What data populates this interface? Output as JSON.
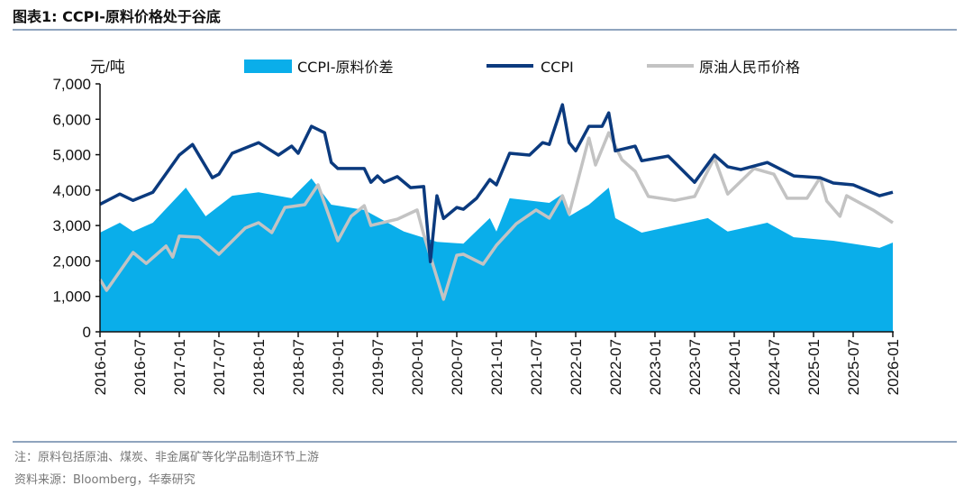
{
  "header": {
    "title": "图表1:  CCPI-原料价格处于谷底"
  },
  "footer": {
    "note": "注：原料包括原油、煤炭、非金属矿等化学品制造环节上游",
    "source": "资料来源：Bloomberg，华泰研究"
  },
  "chart_data": {
    "type": "line",
    "title": "CCPI-原料价格处于谷底",
    "ylabel": "元/吨",
    "ylim": [
      0,
      7000
    ],
    "yticks": [
      "0",
      "1,000",
      "2,000",
      "3,000",
      "4,000",
      "5,000",
      "6,000",
      "7,000"
    ],
    "xticks": [
      "2016-01",
      "2016-07",
      "2017-01",
      "2017-07",
      "2018-01",
      "2018-07",
      "2019-01",
      "2019-07",
      "2020-01",
      "2020-07",
      "2021-01",
      "2021-07",
      "2022-01",
      "2022-07",
      "2023-01",
      "2023-07",
      "2024-01",
      "2024-07",
      "2025-01",
      "2025-07",
      "2026-01"
    ],
    "grid": false,
    "legend": "top",
    "series": [
      {
        "name": "CCPI-原料价差",
        "kind": "area",
        "color": "#0AAEEA",
        "points": [
          [
            "2016-01",
            2800
          ],
          [
            "2016-04",
            3080
          ],
          [
            "2016-06",
            2830
          ],
          [
            "2016-09",
            3080
          ],
          [
            "2017-02",
            4070
          ],
          [
            "2017-05",
            3260
          ],
          [
            "2017-09",
            3840
          ],
          [
            "2018-01",
            3940
          ],
          [
            "2018-06",
            3770
          ],
          [
            "2018-09",
            4330
          ],
          [
            "2018-12",
            3590
          ],
          [
            "2019-05",
            3440
          ],
          [
            "2019-11",
            2830
          ],
          [
            "2020-04",
            2540
          ],
          [
            "2020-08",
            2490
          ],
          [
            "2020-12",
            3210
          ],
          [
            "2021-01",
            2830
          ],
          [
            "2021-03",
            3770
          ],
          [
            "2021-09",
            3640
          ],
          [
            "2021-11",
            3890
          ],
          [
            "2021-12",
            3260
          ],
          [
            "2022-03",
            3590
          ],
          [
            "2022-06",
            4070
          ],
          [
            "2022-07",
            3210
          ],
          [
            "2022-11",
            2800
          ],
          [
            "2023-09",
            3210
          ],
          [
            "2023-12",
            2830
          ],
          [
            "2024-06",
            3080
          ],
          [
            "2024-10",
            2670
          ],
          [
            "2025-04",
            2570
          ],
          [
            "2025-11",
            2370
          ],
          [
            "2026-01",
            2520
          ]
        ]
      },
      {
        "name": "CCPI",
        "kind": "line",
        "color": "#0B3A7E",
        "points": [
          [
            "2016-01",
            3600
          ],
          [
            "2016-04",
            3890
          ],
          [
            "2016-06",
            3710
          ],
          [
            "2016-09",
            3940
          ],
          [
            "2017-01",
            4990
          ],
          [
            "2017-03",
            5290
          ],
          [
            "2017-06",
            4350
          ],
          [
            "2017-07",
            4450
          ],
          [
            "2017-09",
            5040
          ],
          [
            "2018-01",
            5340
          ],
          [
            "2018-04",
            4990
          ],
          [
            "2018-06",
            5240
          ],
          [
            "2018-07",
            5040
          ],
          [
            "2018-09",
            5800
          ],
          [
            "2018-11",
            5620
          ],
          [
            "2018-12",
            4780
          ],
          [
            "2019-01",
            4610
          ],
          [
            "2019-05",
            4610
          ],
          [
            "2019-06",
            4220
          ],
          [
            "2019-07",
            4400
          ],
          [
            "2019-08",
            4220
          ],
          [
            "2019-10",
            4380
          ],
          [
            "2019-12",
            4070
          ],
          [
            "2020-02",
            4100
          ],
          [
            "2020-03",
            1980
          ],
          [
            "2020-04",
            3840
          ],
          [
            "2020-05",
            3200
          ],
          [
            "2020-07",
            3510
          ],
          [
            "2020-08",
            3460
          ],
          [
            "2020-10",
            3770
          ],
          [
            "2020-12",
            4300
          ],
          [
            "2021-01",
            4150
          ],
          [
            "2021-03",
            5040
          ],
          [
            "2021-06",
            4990
          ],
          [
            "2021-08",
            5340
          ],
          [
            "2021-09",
            5290
          ],
          [
            "2021-11",
            6410
          ],
          [
            "2021-12",
            5340
          ],
          [
            "2022-01",
            5110
          ],
          [
            "2022-03",
            5800
          ],
          [
            "2022-05",
            5800
          ],
          [
            "2022-06",
            6180
          ],
          [
            "2022-07",
            5110
          ],
          [
            "2022-10",
            5240
          ],
          [
            "2022-11",
            4830
          ],
          [
            "2023-03",
            4960
          ],
          [
            "2023-07",
            4220
          ],
          [
            "2023-10",
            4990
          ],
          [
            "2023-12",
            4660
          ],
          [
            "2024-02",
            4580
          ],
          [
            "2024-06",
            4780
          ],
          [
            "2024-10",
            4400
          ],
          [
            "2025-02",
            4350
          ],
          [
            "2025-04",
            4200
          ],
          [
            "2025-07",
            4150
          ],
          [
            "2025-11",
            3840
          ],
          [
            "2026-01",
            3940
          ]
        ]
      },
      {
        "name": "原油人民币价格",
        "kind": "line",
        "color": "#C3C3C3",
        "points": [
          [
            "2016-01",
            1480
          ],
          [
            "2016-02",
            1170
          ],
          [
            "2016-06",
            2240
          ],
          [
            "2016-08",
            1930
          ],
          [
            "2016-11",
            2420
          ],
          [
            "2016-12",
            2110
          ],
          [
            "2017-01",
            2700
          ],
          [
            "2017-04",
            2670
          ],
          [
            "2017-07",
            2190
          ],
          [
            "2017-11",
            2930
          ],
          [
            "2018-01",
            3080
          ],
          [
            "2018-03",
            2800
          ],
          [
            "2018-05",
            3510
          ],
          [
            "2018-08",
            3590
          ],
          [
            "2018-10",
            4150
          ],
          [
            "2019-01",
            2570
          ],
          [
            "2019-03",
            3260
          ],
          [
            "2019-05",
            3560
          ],
          [
            "2019-06",
            3000
          ],
          [
            "2019-10",
            3180
          ],
          [
            "2020-01",
            3440
          ],
          [
            "2020-02",
            2750
          ],
          [
            "2020-05",
            920
          ],
          [
            "2020-07",
            2160
          ],
          [
            "2020-08",
            2190
          ],
          [
            "2020-11",
            1910
          ],
          [
            "2021-01",
            2440
          ],
          [
            "2021-04",
            3050
          ],
          [
            "2021-07",
            3440
          ],
          [
            "2021-09",
            3210
          ],
          [
            "2021-11",
            3840
          ],
          [
            "2021-12",
            3330
          ],
          [
            "2022-03",
            5470
          ],
          [
            "2022-04",
            4710
          ],
          [
            "2022-06",
            5620
          ],
          [
            "2022-08",
            4860
          ],
          [
            "2022-10",
            4530
          ],
          [
            "2022-12",
            3820
          ],
          [
            "2023-04",
            3710
          ],
          [
            "2023-07",
            3820
          ],
          [
            "2023-10",
            4910
          ],
          [
            "2023-12",
            3890
          ],
          [
            "2024-04",
            4610
          ],
          [
            "2024-07",
            4450
          ],
          [
            "2024-09",
            3770
          ],
          [
            "2024-12",
            3770
          ],
          [
            "2025-02",
            4350
          ],
          [
            "2025-03",
            3690
          ],
          [
            "2025-05",
            3260
          ],
          [
            "2025-06",
            3840
          ],
          [
            "2025-10",
            3440
          ],
          [
            "2026-01",
            3080
          ]
        ]
      }
    ]
  }
}
